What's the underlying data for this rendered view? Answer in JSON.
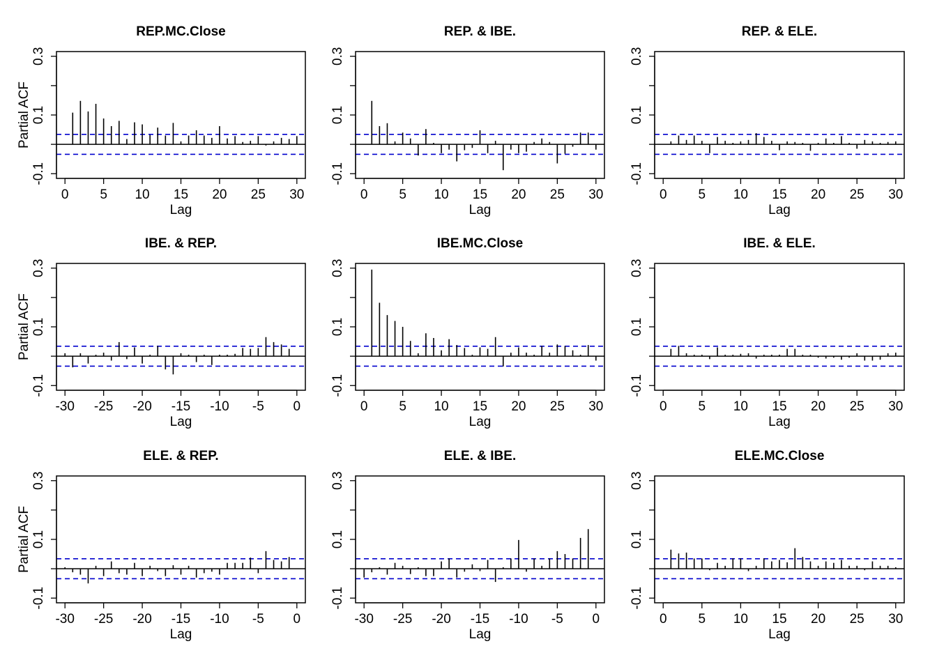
{
  "figure": {
    "y_label": "Partial ACF",
    "x_label": "Lag",
    "conf_color": "#0000CD",
    "bar_color": "#000000"
  },
  "chart_data": [
    {
      "type": "bar",
      "title": "REP.MC.Close",
      "xlabel": "Lag",
      "ylabel": "Partial ACF",
      "ylim": [
        -0.1,
        0.3
      ],
      "xlim": [
        0,
        30
      ],
      "conf_limit": 0.034,
      "x_ticks": [
        0,
        5,
        10,
        15,
        20,
        25,
        30
      ],
      "y_ticks": [
        -0.1,
        0.1,
        0.3
      ],
      "x": [
        1,
        2,
        3,
        4,
        5,
        6,
        7,
        8,
        9,
        10,
        11,
        12,
        13,
        14,
        15,
        16,
        17,
        18,
        19,
        20,
        21,
        22,
        23,
        24,
        25,
        26,
        27,
        28,
        29,
        30
      ],
      "values": [
        0.108,
        0.148,
        0.112,
        0.138,
        0.088,
        0.062,
        0.08,
        0.018,
        0.075,
        0.068,
        0.032,
        0.057,
        0.03,
        0.073,
        0.01,
        0.03,
        0.048,
        0.03,
        0.022,
        0.062,
        0.02,
        0.028,
        0.008,
        0.012,
        0.028,
        -0.004,
        0.01,
        0.022,
        0.018,
        0.028
      ]
    },
    {
      "type": "bar",
      "title": "REP. & IBE.",
      "xlabel": "Lag",
      "ylabel": "",
      "ylim": [
        -0.1,
        0.3
      ],
      "xlim": [
        0,
        30
      ],
      "conf_limit": 0.034,
      "x_ticks": [
        0,
        5,
        10,
        15,
        20,
        25,
        30
      ],
      "y_ticks": [
        -0.1,
        0.1,
        0.3
      ],
      "x": [
        1,
        2,
        3,
        4,
        5,
        6,
        7,
        8,
        9,
        10,
        11,
        12,
        13,
        14,
        15,
        16,
        17,
        18,
        19,
        20,
        21,
        22,
        23,
        24,
        25,
        26,
        27,
        28,
        29,
        30
      ],
      "values": [
        0.148,
        0.062,
        0.072,
        0.01,
        0.04,
        0.02,
        -0.038,
        0.052,
        0.005,
        -0.03,
        -0.018,
        -0.058,
        -0.02,
        -0.012,
        0.048,
        -0.03,
        0.012,
        -0.088,
        -0.018,
        -0.03,
        -0.025,
        0.008,
        0.02,
        0.008,
        -0.065,
        -0.032,
        -0.008,
        0.04,
        0.04,
        -0.018
      ]
    },
    {
      "type": "bar",
      "title": "REP. & ELE.",
      "xlabel": "Lag",
      "ylabel": "",
      "ylim": [
        -0.1,
        0.3
      ],
      "xlim": [
        0,
        30
      ],
      "conf_limit": 0.034,
      "x_ticks": [
        0,
        5,
        10,
        15,
        20,
        25,
        30
      ],
      "y_ticks": [
        -0.1,
        0.1,
        0.3
      ],
      "x": [
        1,
        2,
        3,
        4,
        5,
        6,
        7,
        8,
        9,
        10,
        11,
        12,
        13,
        14,
        15,
        16,
        17,
        18,
        19,
        20,
        21,
        22,
        23,
        24,
        25,
        26,
        27,
        28,
        29,
        30
      ],
      "values": [
        0.01,
        0.03,
        0.015,
        0.03,
        0.012,
        -0.03,
        0.025,
        0.012,
        0.005,
        0.01,
        0.015,
        0.038,
        0.025,
        0.012,
        -0.02,
        0.01,
        0.008,
        0.005,
        -0.022,
        0.005,
        0.02,
        0.005,
        0.028,
        0.005,
        -0.015,
        0.015,
        0.01,
        0.005,
        0.008,
        0.01
      ]
    },
    {
      "type": "bar",
      "title": "IBE. & REP.",
      "xlabel": "Lag",
      "ylabel": "Partial ACF",
      "ylim": [
        -0.1,
        0.3
      ],
      "xlim": [
        -30,
        0
      ],
      "conf_limit": 0.034,
      "x_ticks": [
        -30,
        -25,
        -20,
        -15,
        -10,
        -5,
        0
      ],
      "y_ticks": [
        -0.1,
        0.1,
        0.3
      ],
      "x": [
        -30,
        -29,
        -28,
        -27,
        -26,
        -25,
        -24,
        -23,
        -22,
        -21,
        -20,
        -19,
        -18,
        -17,
        -16,
        -15,
        -14,
        -13,
        -12,
        -11,
        -10,
        -9,
        -8,
        -7,
        -6,
        -5,
        -4,
        -3,
        -2,
        -1
      ],
      "values": [
        0.01,
        -0.038,
        0.01,
        -0.025,
        0.005,
        0.012,
        -0.015,
        0.048,
        -0.01,
        0.03,
        -0.025,
        0.005,
        0.035,
        -0.045,
        -0.062,
        0.01,
        0.005,
        -0.02,
        0.005,
        -0.03,
        0.005,
        0.005,
        0.008,
        0.028,
        0.025,
        0.028,
        0.065,
        0.048,
        0.04,
        0.025
      ]
    },
    {
      "type": "bar",
      "title": "IBE.MC.Close",
      "xlabel": "Lag",
      "ylabel": "",
      "ylim": [
        -0.1,
        0.3
      ],
      "xlim": [
        0,
        30
      ],
      "conf_limit": 0.034,
      "x_ticks": [
        0,
        5,
        10,
        15,
        20,
        25,
        30
      ],
      "y_ticks": [
        -0.1,
        0.1,
        0.3
      ],
      "x": [
        1,
        2,
        3,
        4,
        5,
        6,
        7,
        8,
        9,
        10,
        11,
        12,
        13,
        14,
        15,
        16,
        17,
        18,
        19,
        20,
        21,
        22,
        23,
        24,
        25,
        26,
        27,
        28,
        29,
        30
      ],
      "values": [
        0.295,
        0.182,
        0.14,
        0.12,
        0.1,
        0.052,
        0.01,
        0.078,
        0.062,
        0.02,
        0.058,
        0.038,
        0.028,
        0.005,
        0.03,
        0.025,
        0.065,
        -0.035,
        0.012,
        0.03,
        0.012,
        0.005,
        0.035,
        0.012,
        0.04,
        0.035,
        0.02,
        0.005,
        0.038,
        -0.015
      ]
    },
    {
      "type": "bar",
      "title": "IBE. & ELE.",
      "xlabel": "Lag",
      "ylabel": "",
      "ylim": [
        -0.1,
        0.3
      ],
      "xlim": [
        0,
        30
      ],
      "conf_limit": 0.034,
      "x_ticks": [
        0,
        5,
        10,
        15,
        20,
        25,
        30
      ],
      "y_ticks": [
        -0.1,
        0.1,
        0.3
      ],
      "x": [
        1,
        2,
        3,
        4,
        5,
        6,
        7,
        8,
        9,
        10,
        11,
        12,
        13,
        14,
        15,
        16,
        17,
        18,
        19,
        20,
        21,
        22,
        23,
        24,
        25,
        26,
        27,
        28,
        29,
        30
      ],
      "values": [
        0.025,
        0.035,
        0.01,
        0.005,
        0.005,
        -0.01,
        0.03,
        0.005,
        0.005,
        0.008,
        0.01,
        -0.008,
        0.005,
        0.005,
        0.005,
        0.025,
        0.025,
        0.005,
        0.005,
        -0.005,
        -0.008,
        -0.005,
        -0.012,
        -0.005,
        0.01,
        -0.015,
        -0.015,
        -0.012,
        0.01,
        0.012
      ]
    },
    {
      "type": "bar",
      "title": "ELE. & REP.",
      "xlabel": "Lag",
      "ylabel": "Partial ACF",
      "ylim": [
        -0.1,
        0.3
      ],
      "xlim": [
        -30,
        0
      ],
      "conf_limit": 0.034,
      "x_ticks": [
        -30,
        -25,
        -20,
        -15,
        -10,
        -5,
        0
      ],
      "y_ticks": [
        -0.1,
        0.1,
        0.3
      ],
      "x": [
        -30,
        -29,
        -28,
        -27,
        -26,
        -25,
        -24,
        -23,
        -22,
        -21,
        -20,
        -19,
        -18,
        -17,
        -16,
        -15,
        -14,
        -13,
        -12,
        -11,
        -10,
        -9,
        -8,
        -7,
        -6,
        -5,
        -4,
        -3,
        -2,
        -1
      ],
      "values": [
        0.005,
        -0.012,
        -0.02,
        -0.05,
        0.01,
        -0.025,
        0.025,
        -0.015,
        -0.02,
        0.02,
        -0.025,
        0.01,
        -0.008,
        -0.025,
        0.012,
        -0.02,
        0.01,
        -0.03,
        -0.015,
        -0.01,
        -0.02,
        0.02,
        0.02,
        0.02,
        0.038,
        -0.015,
        0.06,
        0.03,
        0.025,
        0.04
      ]
    },
    {
      "type": "bar",
      "title": "ELE. & IBE.",
      "xlabel": "Lag",
      "ylabel": "",
      "ylim": [
        -0.1,
        0.3
      ],
      "xlim": [
        -30,
        0
      ],
      "conf_limit": 0.034,
      "x_ticks": [
        -30,
        -25,
        -20,
        -15,
        -10,
        -5,
        0
      ],
      "y_ticks": [
        -0.1,
        0.1,
        0.3
      ],
      "x": [
        -30,
        -29,
        -28,
        -27,
        -26,
        -25,
        -24,
        -23,
        -22,
        -21,
        -20,
        -19,
        -18,
        -17,
        -16,
        -15,
        -14,
        -13,
        -12,
        -11,
        -10,
        -9,
        -8,
        -7,
        -6,
        -5,
        -4,
        -3,
        -2,
        -1
      ],
      "values": [
        -0.03,
        -0.012,
        0.005,
        -0.02,
        0.02,
        0.01,
        -0.018,
        0.005,
        -0.025,
        -0.025,
        0.025,
        0.035,
        -0.03,
        -0.01,
        0.015,
        -0.008,
        0.03,
        -0.045,
        0.005,
        0.035,
        0.098,
        -0.01,
        0.035,
        0.01,
        0.035,
        0.06,
        0.05,
        0.035,
        0.105,
        0.135
      ]
    },
    {
      "type": "bar",
      "title": "ELE.MC.Close",
      "xlabel": "Lag",
      "ylabel": "",
      "ylim": [
        -0.1,
        0.3
      ],
      "xlim": [
        0,
        30
      ],
      "conf_limit": 0.034,
      "x_ticks": [
        0,
        5,
        10,
        15,
        20,
        25,
        30
      ],
      "y_ticks": [
        -0.1,
        0.1,
        0.3
      ],
      "x": [
        1,
        2,
        3,
        4,
        5,
        6,
        7,
        8,
        9,
        10,
        11,
        12,
        13,
        14,
        15,
        16,
        17,
        18,
        19,
        20,
        21,
        22,
        23,
        24,
        25,
        26,
        27,
        28,
        29,
        30
      ],
      "values": [
        0.065,
        0.052,
        0.055,
        0.035,
        0.035,
        -0.005,
        0.02,
        0.01,
        0.035,
        0.035,
        -0.008,
        0.01,
        0.035,
        0.025,
        0.03,
        0.022,
        0.07,
        0.04,
        0.025,
        0.01,
        0.025,
        0.02,
        0.03,
        0.01,
        0.01,
        -0.005,
        0.025,
        0.01,
        0.01,
        0.005
      ]
    }
  ]
}
